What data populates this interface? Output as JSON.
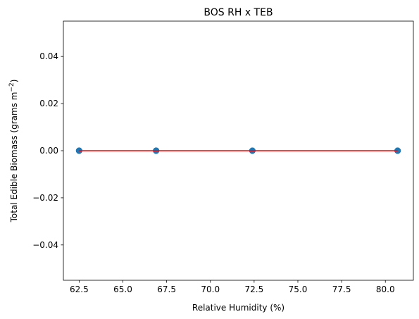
{
  "chart_data": {
    "type": "scatter",
    "title": "BOS RH x TEB",
    "xlabel": "Relative Humidity (%)",
    "ylabel": "Total Edible Biomass (grams m",
    "ylabel_superscript": "−2",
    "ylabel_suffix": ")",
    "xlim": [
      61.6,
      81.6
    ],
    "ylim": [
      -0.055,
      0.055
    ],
    "x_ticks": [
      62.5,
      65.0,
      67.5,
      70.0,
      72.5,
      75.0,
      77.5,
      80.0
    ],
    "x_tick_labels": [
      "62.5",
      "65.0",
      "67.5",
      "70.0",
      "72.5",
      "75.0",
      "77.5",
      "80.0"
    ],
    "y_ticks": [
      -0.04,
      -0.02,
      0.0,
      0.02,
      0.04
    ],
    "y_tick_labels": [
      "−0.04",
      "−0.02",
      "0.00",
      "0.02",
      "0.04"
    ],
    "grid": false,
    "legend": false,
    "series": [
      {
        "type": "scatter",
        "color": "#1f77b4",
        "x": [
          62.5,
          62.5,
          62.5,
          66.9,
          66.9,
          66.9,
          72.4,
          72.4,
          80.7,
          80.7,
          80.7
        ],
        "y": [
          0,
          0,
          0,
          0,
          0,
          0,
          0,
          0,
          0,
          0,
          0
        ]
      },
      {
        "type": "line",
        "color": "#ff0000",
        "x": [
          62.5,
          80.7
        ],
        "y": [
          0,
          0
        ]
      }
    ]
  }
}
